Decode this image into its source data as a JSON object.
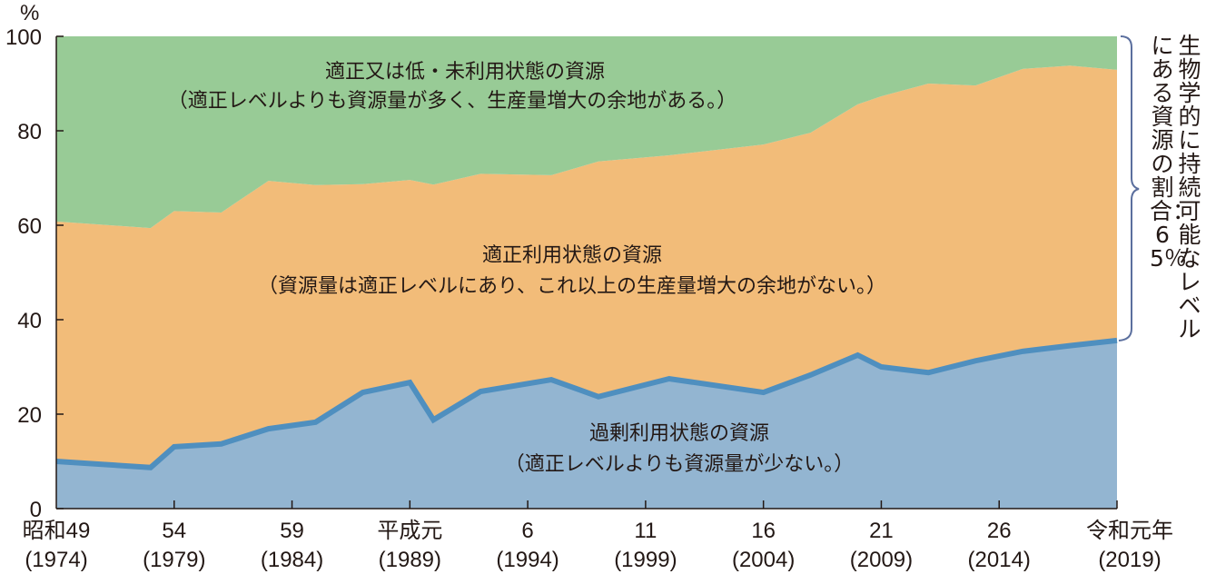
{
  "chart_data": {
    "type": "area",
    "stacked": true,
    "title": "",
    "xlabel": "",
    "ylabel": "%",
    "ylim": [
      0,
      100
    ],
    "yticks": [
      0,
      20,
      40,
      60,
      80,
      100
    ],
    "grid": false,
    "xticks": [
      {
        "year": 1974,
        "era": "昭和49",
        "label": "(1974)"
      },
      {
        "year": 1979,
        "era": "54",
        "label": "(1979)"
      },
      {
        "year": 1984,
        "era": "59",
        "label": "(1984)"
      },
      {
        "year": 1989,
        "era": "平成元",
        "label": "(1989)"
      },
      {
        "year": 1994,
        "era": "6",
        "label": "(1994)"
      },
      {
        "year": 1999,
        "era": "11",
        "label": "(1999)"
      },
      {
        "year": 2004,
        "era": "16",
        "label": "(2004)"
      },
      {
        "year": 2009,
        "era": "21",
        "label": "(2009)"
      },
      {
        "year": 2014,
        "era": "26",
        "label": "(2014)"
      },
      {
        "year": 2019,
        "era": "令和元年",
        "label": "(2019)"
      }
    ],
    "x": [
      1974,
      1978,
      1979,
      1981,
      1983,
      1985,
      1987,
      1989,
      1990,
      1992,
      1995,
      1997,
      2000,
      2004,
      2006,
      2008,
      2009,
      2011,
      2013,
      2015,
      2017,
      2019
    ],
    "series": [
      {
        "name": "過剰利用状態の資源",
        "color": "#93b5d1",
        "line_color": "#4f8fbf",
        "cumulative_top": [
          10.0,
          8.7,
          13.1,
          13.7,
          16.9,
          18.3,
          24.6,
          26.7,
          18.8,
          24.8,
          27.3,
          23.7,
          27.5,
          24.6,
          28.3,
          32.5,
          30.0,
          28.8,
          31.3,
          33.3,
          34.5,
          35.6
        ]
      },
      {
        "name": "適正利用状態の資源",
        "color": "#f2bc79",
        "cumulative_top": [
          60.8,
          59.4,
          63.0,
          62.7,
          69.4,
          68.5,
          68.7,
          69.6,
          68.6,
          70.9,
          70.6,
          73.5,
          74.8,
          77.1,
          79.6,
          85.6,
          87.3,
          90.0,
          89.6,
          93.1,
          93.8,
          92.9
        ]
      },
      {
        "name": "適正又は低・未利用状態の資源",
        "color": "#98cb96",
        "cumulative_top": [
          100,
          100,
          100,
          100,
          100,
          100,
          100,
          100,
          100,
          100,
          100,
          100,
          100,
          100,
          100,
          100,
          100,
          100,
          100,
          100,
          100,
          100
        ]
      }
    ],
    "annotations": {
      "green_title": "適正又は低・未利用状態の資源",
      "green_sub": "（適正レベルよりも資源量が多く、生産量増大の余地がある。）",
      "orange_title": "適正利用状態の資源",
      "orange_sub": "（資源量は適正レベルにあり、これ以上の生産量増大の余地がない。）",
      "blue_title": "過剰利用状態の資源",
      "blue_sub": "（適正レベルよりも資源量が少ない。）",
      "bracket_col1": "生物学的に持続可能なレベル",
      "bracket_col2": "にある資源の割合：65％"
    }
  },
  "axis": {
    "y_unit": "%",
    "y_ticks": [
      "0",
      "20",
      "40",
      "60",
      "80",
      "100"
    ]
  }
}
